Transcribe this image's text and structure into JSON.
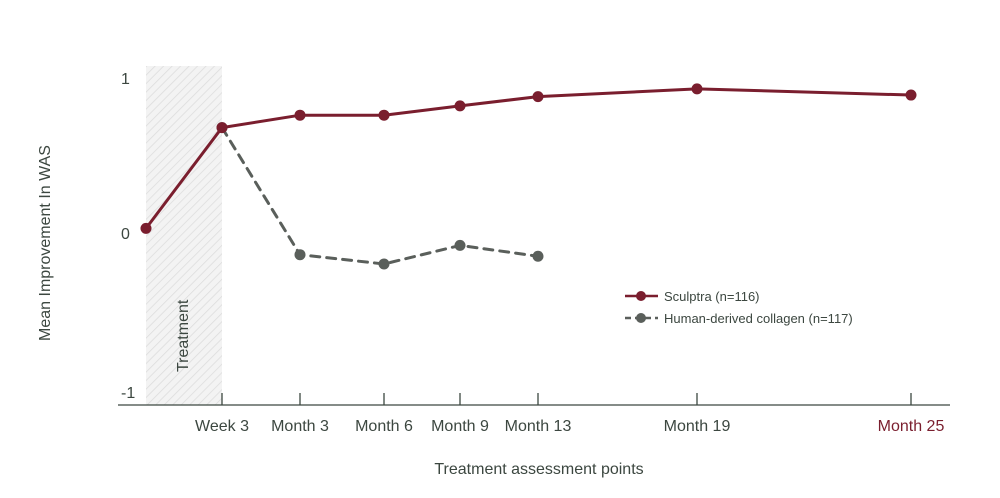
{
  "chart_data": {
    "type": "line",
    "categories": [
      "",
      "Week 3",
      "Month 3",
      "Month 6",
      "Month 9",
      "Month 13",
      "Month 19",
      "Month 25"
    ],
    "x": [
      0,
      3,
      13,
      26,
      39,
      57,
      83,
      108
    ],
    "series": [
      {
        "name": "Sculptra (n=116)",
        "color": "#7a1e2e",
        "style": "solid",
        "x": [
          0,
          3,
          13,
          26,
          39,
          57,
          83,
          108
        ],
        "values": [
          0.03,
          0.68,
          0.76,
          0.76,
          0.82,
          0.88,
          0.93,
          0.89
        ]
      },
      {
        "name": "Human-derived collagen (n=117)",
        "color": "#5a5f5b",
        "style": "dashed",
        "x": [
          3,
          13,
          26,
          39,
          57
        ],
        "values": [
          0.68,
          -0.14,
          -0.2,
          -0.08,
          -0.15
        ]
      }
    ],
    "ylabel": "Mean Improvement In WAS",
    "xlabel": "Treatment assessment points",
    "yticks": [
      {
        "value": 1,
        "label": "1"
      },
      {
        "value": 0,
        "label": "0"
      },
      {
        "value": -1,
        "label": "-1"
      }
    ],
    "ylim": [
      -1.1,
      1.1
    ],
    "highlight_tick": {
      "label": "Month 25",
      "color": "#7a1e2e"
    },
    "shaded_region": {
      "label": "Treatment",
      "x_start": 0,
      "x_end": 3
    },
    "legend_position": "right",
    "grid": false
  }
}
